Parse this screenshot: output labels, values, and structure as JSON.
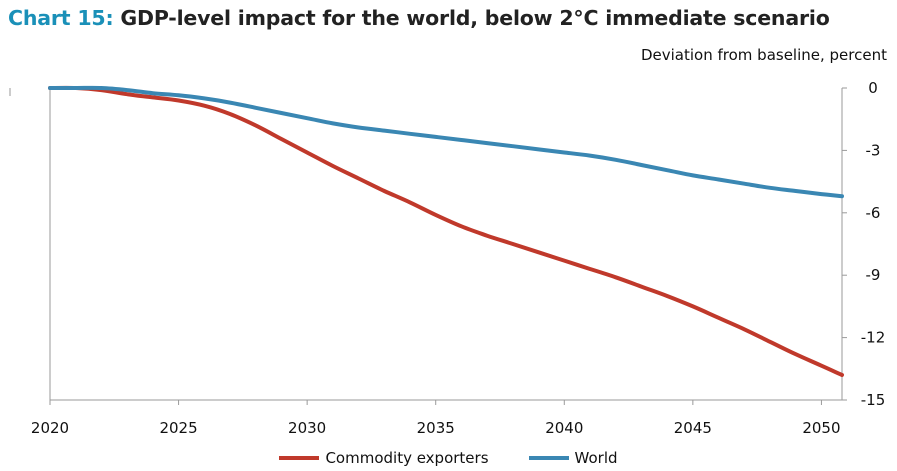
{
  "header": {
    "prefix": "Chart 15:",
    "title": "GDP-level impact for the world, below 2°C immediate scenario",
    "units": "Deviation from baseline, percent"
  },
  "colors": {
    "commodity": "#c0392b",
    "world": "#3a87b3",
    "axis": "#9a9a9a"
  },
  "chart_data": {
    "type": "line",
    "title": "GDP-level impact for the world, below 2°C immediate scenario",
    "ylabel": "Deviation from baseline, percent",
    "xlim": [
      2020,
      2050.8
    ],
    "ylim": [
      -15,
      0
    ],
    "x_ticks": [
      2020,
      2025,
      2030,
      2035,
      2040,
      2045,
      2050
    ],
    "y_ticks": [
      0,
      -3,
      -6,
      -9,
      -12,
      -15
    ],
    "grid": false,
    "legend_position": "bottom",
    "series": [
      {
        "name": "Commodity exporters",
        "color": "#c0392b",
        "x": [
          2020,
          2021,
          2022,
          2023,
          2024,
          2025,
          2026,
          2027,
          2028,
          2029,
          2030,
          2031,
          2032,
          2033,
          2034,
          2035,
          2036,
          2037,
          2038,
          2039,
          2040,
          2041,
          2042,
          2043,
          2044,
          2045,
          2046,
          2047,
          2048,
          2049,
          2050,
          2050.8
        ],
        "values": [
          0,
          0,
          -0.1,
          -0.3,
          -0.45,
          -0.6,
          -0.85,
          -1.25,
          -1.8,
          -2.45,
          -3.1,
          -3.75,
          -4.35,
          -4.95,
          -5.5,
          -6.1,
          -6.65,
          -7.1,
          -7.5,
          -7.9,
          -8.3,
          -8.7,
          -9.1,
          -9.55,
          -10.0,
          -10.5,
          -11.05,
          -11.6,
          -12.2,
          -12.8,
          -13.35,
          -13.8
        ]
      },
      {
        "name": "World",
        "color": "#3a87b3",
        "x": [
          2020,
          2021,
          2022,
          2023,
          2024,
          2025,
          2026,
          2027,
          2028,
          2029,
          2030,
          2031,
          2032,
          2033,
          2034,
          2035,
          2036,
          2037,
          2038,
          2039,
          2040,
          2041,
          2042,
          2043,
          2044,
          2045,
          2046,
          2047,
          2048,
          2049,
          2050,
          2050.8
        ],
        "values": [
          0,
          0,
          0,
          -0.1,
          -0.25,
          -0.35,
          -0.5,
          -0.7,
          -0.95,
          -1.2,
          -1.45,
          -1.7,
          -1.9,
          -2.05,
          -2.2,
          -2.35,
          -2.5,
          -2.65,
          -2.8,
          -2.95,
          -3.1,
          -3.25,
          -3.45,
          -3.7,
          -3.95,
          -4.2,
          -4.4,
          -4.6,
          -4.8,
          -4.95,
          -5.1,
          -5.2
        ]
      }
    ]
  }
}
